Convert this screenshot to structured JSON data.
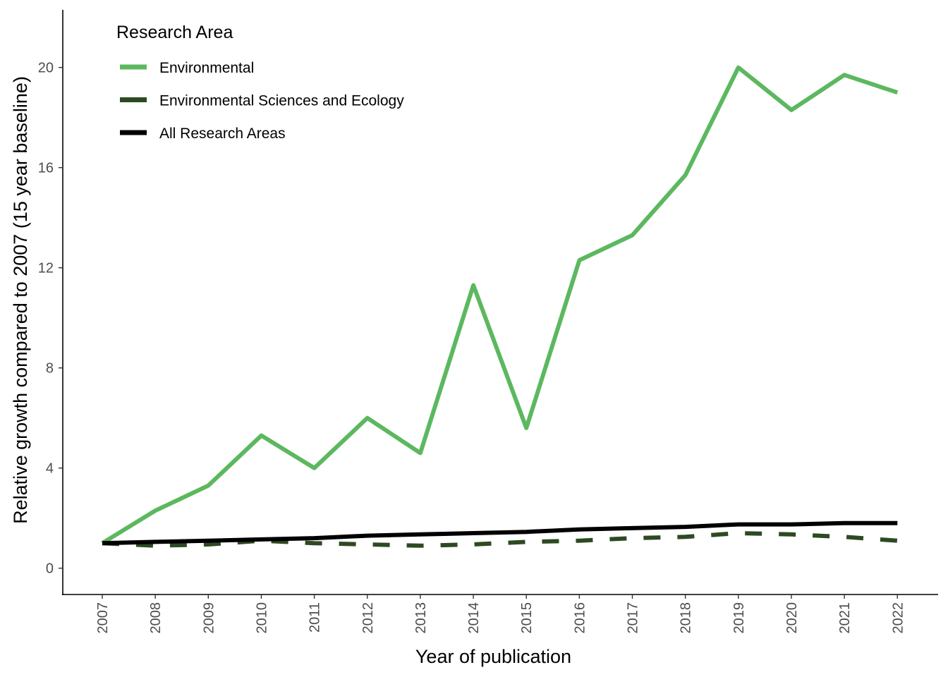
{
  "chart_data": {
    "type": "line",
    "xlabel": "Year of publication",
    "ylabel": "Relative growth compared to 2007 (15 year baseline)",
    "categories": [
      "2007",
      "2008",
      "2009",
      "2010",
      "2011",
      "2012",
      "2013",
      "2014",
      "2015",
      "2016",
      "2017",
      "2018",
      "2019",
      "2020",
      "2021",
      "2022"
    ],
    "ylim": [
      -1.05,
      22.3
    ],
    "yticks": [
      0,
      4,
      8,
      12,
      16,
      20
    ],
    "ytick_labels": [
      "0",
      "4",
      "8",
      "12",
      "16",
      "20"
    ],
    "grid": false,
    "legend": {
      "title": "Research Area",
      "placement": "top-left"
    },
    "series": [
      {
        "name": "Environmental",
        "color": "#5cb85f",
        "dash": "solid",
        "values": [
          1.0,
          2.3,
          3.3,
          5.3,
          4.0,
          6.0,
          4.6,
          11.3,
          5.6,
          12.3,
          13.3,
          15.7,
          20.0,
          18.3,
          19.7,
          19.0
        ]
      },
      {
        "name": "Environmental Sciences and Ecology",
        "color": "#2d4a22",
        "dash": "dashed",
        "values": [
          1.0,
          0.9,
          0.95,
          1.1,
          1.0,
          0.95,
          0.9,
          0.95,
          1.05,
          1.1,
          1.2,
          1.25,
          1.4,
          1.35,
          1.25,
          1.1
        ]
      },
      {
        "name": "All Research Areas",
        "color": "#000000",
        "dash": "solid",
        "values": [
          1.0,
          1.05,
          1.1,
          1.15,
          1.2,
          1.3,
          1.35,
          1.4,
          1.45,
          1.55,
          1.6,
          1.65,
          1.75,
          1.75,
          1.8,
          1.8
        ]
      }
    ]
  }
}
